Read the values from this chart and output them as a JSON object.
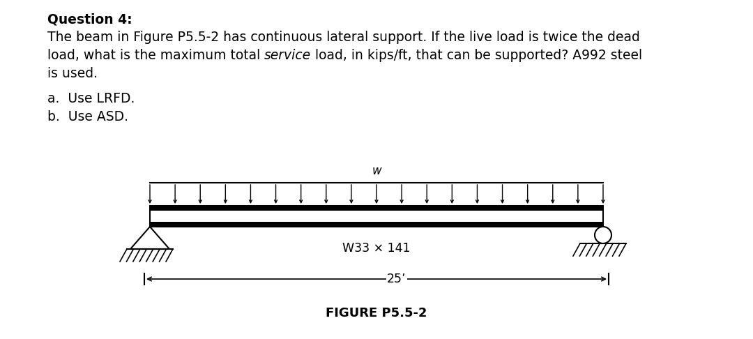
{
  "title_bold": "Question 4:",
  "q_line1": "The beam in Figure P5.5-2 has continuous lateral support. If the live load is twice the dead",
  "q_line2_pre": "load, what is the maximum total ",
  "q_line2_italic": "service",
  "q_line2_post": " load, in kips/ft, that can be supported? A992 steel",
  "q_line3": "is used.",
  "part_a": "a.  Use LRFD.",
  "part_b": "b.  Use ASD.",
  "beam_label": "W33 × 141",
  "span_label": "25’",
  "figure_label": "FIGURE P5.5-2",
  "load_label": "w",
  "background_color": "#ffffff",
  "text_color": "#000000",
  "num_arrows": 19,
  "fontsize_text": 13.5,
  "fontsize_diagram": 12,
  "fontsize_figure": 13
}
